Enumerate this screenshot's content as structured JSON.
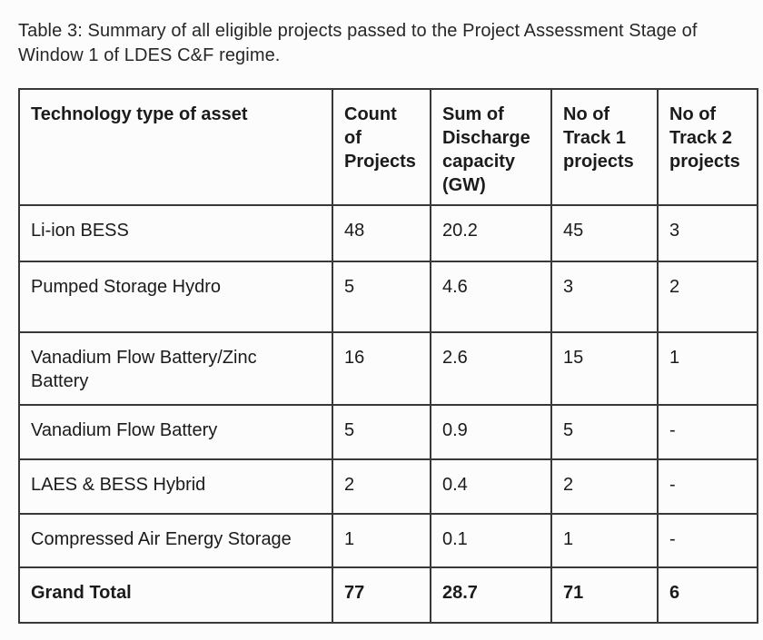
{
  "page": {
    "caption": "Table 3: Summary of all eligible projects passed to the Project Assessment Stage of\nWindow 1 of LDES C&F regime."
  },
  "table": {
    "headers": [
      "Technology type of asset",
      "Count of Projects",
      "Sum of Discharge capacity (GW)",
      "No of Track 1 projects",
      "No of Track 2 projects"
    ],
    "rows": [
      {
        "technology": "Li-ion BESS",
        "count": "48",
        "capacity": "20.2",
        "track1": "45",
        "track2": "3"
      },
      {
        "technology": "Pumped Storage Hydro",
        "count": "5",
        "capacity": "4.6",
        "track1": "3",
        "track2": "2"
      },
      {
        "technology": "Vanadium Flow Battery/Zinc Battery",
        "count": "16",
        "capacity": "2.6",
        "track1": "15",
        "track2": "1"
      },
      {
        "technology": "Vanadium Flow Battery",
        "count": "5",
        "capacity": "0.9",
        "track1": "5",
        "track2": "-"
      },
      {
        "technology": "LAES & BESS Hybrid",
        "count": "2",
        "capacity": "0.4",
        "track1": "2",
        "track2": "-"
      },
      {
        "technology": "Compressed Air Energy Storage",
        "count": "1",
        "capacity": "0.1",
        "track1": "1",
        "track2": "-"
      }
    ],
    "total_row": {
      "technology": "Grand Total",
      "count": "77",
      "capacity": "28.7",
      "track1": "71",
      "track2": "6"
    }
  },
  "colors": {
    "background": "#fcfcfc",
    "text": "#1b1b1b",
    "border": "#383838"
  }
}
